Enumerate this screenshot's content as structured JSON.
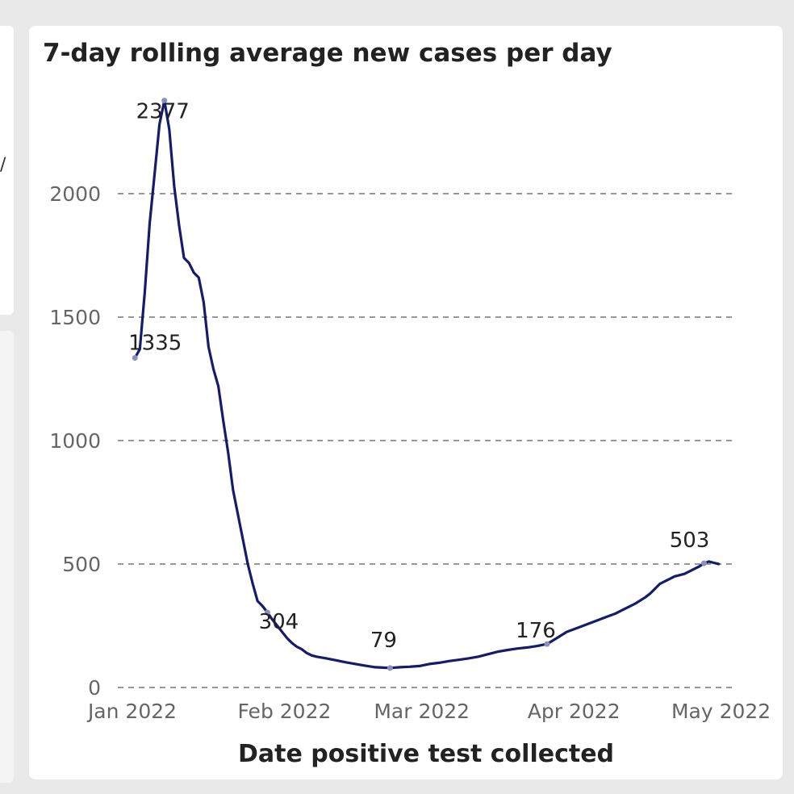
{
  "chart_data": {
    "type": "line",
    "title": "7-day rolling average new cases per day",
    "xlabel": "Date positive test collected",
    "ylabel": "",
    "ylim": [
      0,
      2500
    ],
    "yticks": [
      0,
      500,
      1000,
      1500,
      2000
    ],
    "ytick_labels": [
      "0",
      "500",
      "1000",
      "1500",
      "2000"
    ],
    "xticks": [
      {
        "day": 0,
        "label": "Jan 2022"
      },
      {
        "day": 31,
        "label": "Feb 2022"
      },
      {
        "day": 59,
        "label": "Mar 2022"
      },
      {
        "day": 90,
        "label": "Apr 2022"
      },
      {
        "day": 120,
        "label": "May 2022"
      }
    ],
    "grid": "horizontal-dashed",
    "series": [
      {
        "name": "7-day rolling average",
        "color": "#141c6b",
        "points": [
          [
            3,
            1335
          ],
          [
            4,
            1370
          ],
          [
            5,
            1600
          ],
          [
            6,
            1880
          ],
          [
            7,
            2080
          ],
          [
            8,
            2280
          ],
          [
            9,
            2377
          ],
          [
            10,
            2260
          ],
          [
            11,
            2030
          ],
          [
            12,
            1870
          ],
          [
            13,
            1740
          ],
          [
            14,
            1720
          ],
          [
            15,
            1680
          ],
          [
            16,
            1660
          ],
          [
            17,
            1560
          ],
          [
            18,
            1380
          ],
          [
            19,
            1290
          ],
          [
            20,
            1220
          ],
          [
            21,
            1080
          ],
          [
            22,
            950
          ],
          [
            23,
            800
          ],
          [
            24,
            700
          ],
          [
            25,
            600
          ],
          [
            26,
            500
          ],
          [
            27,
            420
          ],
          [
            28,
            350
          ],
          [
            29,
            330
          ],
          [
            30,
            304
          ],
          [
            31,
            275
          ],
          [
            32,
            250
          ],
          [
            33,
            225
          ],
          [
            34,
            200
          ],
          [
            35,
            180
          ],
          [
            36,
            165
          ],
          [
            37,
            155
          ],
          [
            38,
            140
          ],
          [
            39,
            130
          ],
          [
            40,
            125
          ],
          [
            42,
            118
          ],
          [
            44,
            110
          ],
          [
            46,
            102
          ],
          [
            48,
            95
          ],
          [
            50,
            88
          ],
          [
            52,
            82
          ],
          [
            54,
            80
          ],
          [
            55,
            79
          ],
          [
            57,
            82
          ],
          [
            59,
            84
          ],
          [
            61,
            87
          ],
          [
            63,
            95
          ],
          [
            65,
            100
          ],
          [
            67,
            107
          ],
          [
            69,
            112
          ],
          [
            71,
            118
          ],
          [
            73,
            125
          ],
          [
            75,
            135
          ],
          [
            77,
            145
          ],
          [
            79,
            152
          ],
          [
            81,
            158
          ],
          [
            83,
            162
          ],
          [
            85,
            168
          ],
          [
            87,
            176
          ],
          [
            89,
            200
          ],
          [
            91,
            225
          ],
          [
            93,
            240
          ],
          [
            95,
            255
          ],
          [
            97,
            270
          ],
          [
            99,
            285
          ],
          [
            101,
            300
          ],
          [
            103,
            320
          ],
          [
            105,
            340
          ],
          [
            107,
            365
          ],
          [
            108,
            380
          ],
          [
            109,
            400
          ],
          [
            110,
            420
          ],
          [
            111,
            430
          ],
          [
            112,
            440
          ],
          [
            113,
            450
          ],
          [
            114,
            455
          ],
          [
            115,
            460
          ],
          [
            116,
            470
          ],
          [
            117,
            480
          ],
          [
            118,
            490
          ],
          [
            119,
            503
          ],
          [
            120,
            510
          ],
          [
            121,
            505
          ],
          [
            122,
            500
          ]
        ]
      }
    ],
    "data_labels": [
      {
        "day": 3,
        "value": 1335,
        "text": "1335"
      },
      {
        "day": 9,
        "value": 2377,
        "text": "2377"
      },
      {
        "day": 30,
        "value": 304,
        "text": "304"
      },
      {
        "day": 55,
        "value": 79,
        "text": "79"
      },
      {
        "day": 87,
        "value": 176,
        "text": "176"
      },
      {
        "day": 119,
        "value": 503,
        "text": "503"
      }
    ]
  }
}
